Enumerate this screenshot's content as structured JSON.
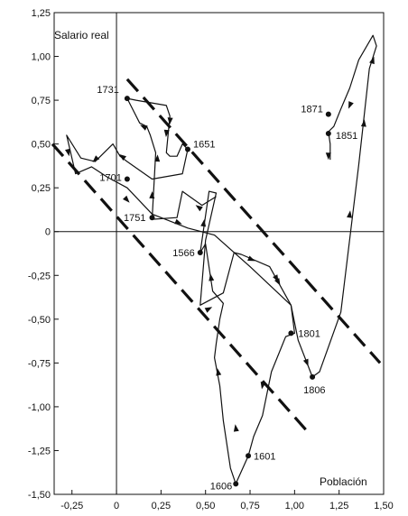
{
  "chart_data": {
    "type": "line",
    "title": "",
    "xlabel": "Población",
    "ylabel": "Salario real",
    "xlim": [
      -0.35,
      1.5
    ],
    "ylim": [
      -1.5,
      1.25
    ],
    "x_ticks": [
      -0.25,
      0,
      0.25,
      0.5,
      0.75,
      1.0,
      1.25,
      1.5
    ],
    "x_tick_labels": [
      "-0,25",
      "0",
      "0,25",
      "0,50",
      "0,75",
      "1,00",
      "1,25",
      "1,50"
    ],
    "y_ticks": [
      -1.5,
      -1.25,
      -1.0,
      -0.75,
      -0.5,
      -0.25,
      0,
      0.25,
      0.5,
      0.75,
      1.0,
      1.25
    ],
    "y_tick_labels": [
      "-1,50",
      "-1,25",
      "-1,00",
      "-0,75",
      "-0,50",
      "-0,25",
      "0",
      "0,25",
      "0,50",
      "0,75",
      "1,00",
      "1,25"
    ],
    "grid": false,
    "series": [
      {
        "points": [
          [
            0.47,
            -0.12
          ],
          [
            0.52,
            0.23
          ],
          [
            0.56,
            0.22
          ],
          [
            0.5,
            -0.05
          ],
          [
            0.47,
            -0.42
          ],
          [
            0.6,
            -0.35
          ],
          [
            0.66,
            -0.12
          ],
          [
            0.7,
            -0.13
          ],
          [
            0.86,
            -0.2
          ],
          [
            0.98,
            -0.42
          ],
          [
            1.02,
            -0.62
          ],
          [
            1.1,
            -0.83
          ],
          [
            1.14,
            -0.8
          ],
          [
            1.26,
            -0.46
          ],
          [
            1.36,
            0.38
          ],
          [
            1.42,
            0.93
          ],
          [
            1.46,
            1.06
          ],
          [
            1.44,
            1.12
          ],
          [
            1.36,
            0.98
          ],
          [
            1.31,
            0.82
          ],
          [
            1.26,
            0.7
          ],
          [
            1.22,
            0.6
          ],
          [
            1.19,
            0.57
          ],
          [
            1.2,
            0.5
          ],
          [
            1.2,
            0.41
          ]
        ]
      },
      {
        "points": [
          [
            0.56,
            0.2
          ],
          [
            0.48,
            0.15
          ],
          [
            0.37,
            0.23
          ],
          [
            0.34,
            0.08
          ],
          [
            0.2,
            0.07
          ],
          [
            0.22,
            0.45
          ],
          [
            0.19,
            0.55
          ],
          [
            0.17,
            0.6
          ],
          [
            0.13,
            0.62
          ],
          [
            0.06,
            0.76
          ],
          [
            0.11,
            0.75
          ],
          [
            0.28,
            0.72
          ],
          [
            0.3,
            0.66
          ],
          [
            0.28,
            0.45
          ],
          [
            0.3,
            0.43
          ],
          [
            0.34,
            0.43
          ],
          [
            0.37,
            0.5
          ],
          [
            0.4,
            0.47
          ],
          [
            0.37,
            0.33
          ],
          [
            0.2,
            0.3
          ],
          [
            0.06,
            0.4
          ],
          [
            0.02,
            0.43
          ],
          [
            -0.02,
            0.5
          ],
          [
            -0.12,
            0.4
          ],
          [
            -0.2,
            0.42
          ],
          [
            -0.28,
            0.55
          ],
          [
            -0.23,
            0.33
          ],
          [
            -0.14,
            0.37
          ],
          [
            -0.05,
            0.31
          ],
          [
            0.06,
            0.25
          ],
          [
            0.2,
            0.1
          ],
          [
            0.4,
            0.02
          ],
          [
            0.55,
            -0.02
          ],
          [
            0.75,
            -0.2
          ],
          [
            0.98,
            -0.42
          ],
          [
            1.0,
            -0.58
          ],
          [
            0.95,
            -0.6
          ],
          [
            0.87,
            -0.8
          ],
          [
            0.82,
            -1.05
          ],
          [
            0.77,
            -1.17
          ],
          [
            0.74,
            -1.28
          ],
          [
            0.67,
            -1.44
          ],
          [
            0.64,
            -1.35
          ],
          [
            0.6,
            -1.08
          ],
          [
            0.58,
            -0.88
          ],
          [
            0.55,
            -0.72
          ],
          [
            0.56,
            -0.64
          ],
          [
            0.58,
            -0.5
          ],
          [
            0.6,
            -0.41
          ],
          [
            0.54,
            -0.34
          ],
          [
            0.5,
            -0.07
          ],
          [
            0.47,
            -0.12
          ]
        ]
      }
    ],
    "arrows": [
      [
        0.49,
        0.05
      ],
      [
        0.53,
        -0.26
      ],
      [
        0.76,
        -0.16
      ],
      [
        0.9,
        -0.27
      ],
      [
        1.07,
        -0.75
      ],
      [
        1.31,
        0.1
      ],
      [
        1.39,
        0.62
      ],
      [
        1.44,
        0.98
      ],
      [
        1.31,
        0.72
      ],
      [
        1.19,
        0.43
      ],
      [
        0.46,
        0.14
      ],
      [
        0.2,
        0.21
      ],
      [
        0.15,
        0.6
      ],
      [
        0.28,
        0.56
      ],
      [
        0.3,
        0.63
      ],
      [
        -0.12,
        0.41
      ],
      [
        -0.27,
        0.45
      ],
      [
        0.06,
        0.18
      ],
      [
        0.35,
        0.05
      ],
      [
        0.91,
        -0.29
      ],
      [
        0.82,
        -0.88
      ],
      [
        0.67,
        -1.12
      ],
      [
        0.57,
        -0.8
      ],
      [
        0.52,
        -0.44
      ],
      [
        0.23,
        0.42
      ],
      [
        0.03,
        0.43
      ]
    ],
    "points_labeled": [
      {
        "label": "1731",
        "x": 0.06,
        "y": 0.76
      },
      {
        "label": "1651",
        "x": 0.4,
        "y": 0.47
      },
      {
        "label": "1701",
        "x": 0.06,
        "y": 0.3
      },
      {
        "label": "1751",
        "x": 0.2,
        "y": 0.08
      },
      {
        "label": "1566",
        "x": 0.47,
        "y": -0.12
      },
      {
        "label": "1801",
        "x": 0.98,
        "y": -0.58
      },
      {
        "label": "1806",
        "x": 1.1,
        "y": -0.83
      },
      {
        "label": "1601",
        "x": 0.74,
        "y": -1.28
      },
      {
        "label": "1606",
        "x": 0.67,
        "y": -1.44
      },
      {
        "label": "1871",
        "x": 1.19,
        "y": 0.67
      },
      {
        "label": "1851",
        "x": 1.19,
        "y": 0.56
      }
    ],
    "dashed_lines": [
      [
        [
          -0.36,
          0.5
        ],
        [
          1.08,
          -1.15
        ]
      ],
      [
        [
          0.06,
          0.87
        ],
        [
          1.48,
          -0.75
        ]
      ]
    ]
  }
}
